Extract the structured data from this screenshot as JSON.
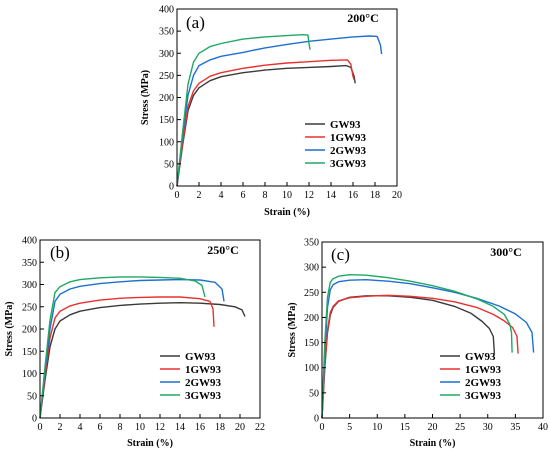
{
  "chart_data": [
    {
      "type": "line",
      "panel": "(a)",
      "temperature": "200°C",
      "xlabel": "Strain (%)",
      "ylabel": "Stress (MPa)",
      "xlim": [
        0,
        20
      ],
      "ylim": [
        0,
        400
      ],
      "xticks": [
        "0",
        "2",
        "4",
        "6",
        "8",
        "10",
        "12",
        "14",
        "16",
        "18",
        "20"
      ],
      "yticks": [
        "0",
        "50",
        "100",
        "150",
        "200",
        "250",
        "300",
        "350",
        "400"
      ],
      "legend_position": "lower-right",
      "series": [
        {
          "name": "GW93",
          "color": "#3a3a3a",
          "points": [
            [
              0,
              0
            ],
            [
              0.5,
              90
            ],
            [
              1,
              170
            ],
            [
              1.5,
              205
            ],
            [
              2,
              222
            ],
            [
              3,
              238
            ],
            [
              4,
              247
            ],
            [
              6,
              256
            ],
            [
              8,
              262
            ],
            [
              10,
              266
            ],
            [
              12,
              268
            ],
            [
              14,
              270
            ],
            [
              15.4,
              272
            ],
            [
              15.8,
              268
            ],
            [
              16.1,
              248
            ],
            [
              16.2,
              232
            ]
          ]
        },
        {
          "name": "1GW93",
          "color": "#e8312f",
          "points": [
            [
              0,
              0
            ],
            [
              0.5,
              95
            ],
            [
              1,
              180
            ],
            [
              1.5,
              215
            ],
            [
              2,
              232
            ],
            [
              3,
              248
            ],
            [
              4,
              256
            ],
            [
              6,
              266
            ],
            [
              8,
              273
            ],
            [
              10,
              278
            ],
            [
              12,
              281
            ],
            [
              14,
              284
            ],
            [
              15.5,
              285
            ],
            [
              15.8,
              275
            ],
            [
              16,
              248
            ],
            [
              16.1,
              240
            ]
          ]
        },
        {
          "name": "2GW93",
          "color": "#1f6fd1",
          "points": [
            [
              0,
              0
            ],
            [
              0.5,
              110
            ],
            [
              1,
              205
            ],
            [
              1.5,
              250
            ],
            [
              2,
              272
            ],
            [
              3,
              285
            ],
            [
              4,
              293
            ],
            [
              6,
              302
            ],
            [
              8,
              312
            ],
            [
              10,
              320
            ],
            [
              12,
              327
            ],
            [
              14,
              332
            ],
            [
              16,
              337
            ],
            [
              17.5,
              339
            ],
            [
              18.2,
              338
            ],
            [
              18.5,
              318
            ],
            [
              18.6,
              298
            ]
          ]
        },
        {
          "name": "3GW93",
          "color": "#1fa863",
          "points": [
            [
              0,
              0
            ],
            [
              0.5,
              120
            ],
            [
              1,
              230
            ],
            [
              1.5,
              280
            ],
            [
              2,
              300
            ],
            [
              3,
              315
            ],
            [
              4,
              322
            ],
            [
              6,
              332
            ],
            [
              8,
              337
            ],
            [
              10,
              340
            ],
            [
              11.5,
              342
            ],
            [
              11.9,
              341
            ],
            [
              12,
              322
            ],
            [
              12.1,
              308
            ]
          ]
        }
      ]
    },
    {
      "type": "line",
      "panel": "(b)",
      "temperature": "250°C",
      "xlabel": "Strain (%)",
      "ylabel": "Stress (MPa)",
      "xlim": [
        0,
        22
      ],
      "ylim": [
        0,
        400
      ],
      "xticks": [
        "0",
        "2",
        "4",
        "6",
        "8",
        "10",
        "12",
        "14",
        "16",
        "18",
        "20",
        "22"
      ],
      "yticks": [
        "0",
        "50",
        "100",
        "150",
        "200",
        "250",
        "300",
        "350",
        "400"
      ],
      "legend_position": "lower-right",
      "series": [
        {
          "name": "GW93",
          "color": "#3a3a3a",
          "points": [
            [
              0,
              0
            ],
            [
              0.5,
              85
            ],
            [
              1,
              160
            ],
            [
              1.5,
              200
            ],
            [
              2,
              218
            ],
            [
              3,
              232
            ],
            [
              4,
              240
            ],
            [
              6,
              248
            ],
            [
              8,
              253
            ],
            [
              10,
              256
            ],
            [
              12,
              258
            ],
            [
              14,
              259
            ],
            [
              16,
              258
            ],
            [
              18,
              255
            ],
            [
              19.5,
              250
            ],
            [
              20.2,
              243
            ],
            [
              20.5,
              228
            ]
          ]
        },
        {
          "name": "1GW93",
          "color": "#e8312f",
          "points": [
            [
              0,
              0
            ],
            [
              0.5,
              95
            ],
            [
              1,
              180
            ],
            [
              1.5,
              225
            ],
            [
              2,
              240
            ],
            [
              3,
              252
            ],
            [
              4,
              258
            ],
            [
              6,
              265
            ],
            [
              8,
              269
            ],
            [
              10,
              271
            ],
            [
              12,
              272
            ],
            [
              14,
              272
            ],
            [
              16,
              268
            ],
            [
              17,
              262
            ],
            [
              17.3,
              245
            ],
            [
              17.4,
              205
            ]
          ]
        },
        {
          "name": "2GW93",
          "color": "#1f6fd1",
          "points": [
            [
              0,
              0
            ],
            [
              0.5,
              105
            ],
            [
              1,
              200
            ],
            [
              1.5,
              262
            ],
            [
              2,
              278
            ],
            [
              3,
              290
            ],
            [
              4,
              296
            ],
            [
              6,
              302
            ],
            [
              8,
              306
            ],
            [
              10,
              309
            ],
            [
              12,
              310
            ],
            [
              14,
              311
            ],
            [
              16,
              310
            ],
            [
              17.5,
              305
            ],
            [
              18.2,
              290
            ],
            [
              18.4,
              262
            ]
          ]
        },
        {
          "name": "3GW93",
          "color": "#1fa863",
          "points": [
            [
              0,
              0
            ],
            [
              0.5,
              115
            ],
            [
              1,
              220
            ],
            [
              1.5,
              282
            ],
            [
              2,
              295
            ],
            [
              3,
              306
            ],
            [
              4,
              311
            ],
            [
              6,
              315
            ],
            [
              8,
              317
            ],
            [
              10,
              317
            ],
            [
              12,
              316
            ],
            [
              14,
              314
            ],
            [
              15.5,
              308
            ],
            [
              16.2,
              298
            ],
            [
              16.5,
              272
            ]
          ]
        }
      ]
    },
    {
      "type": "line",
      "panel": "(c)",
      "temperature": "300°C",
      "xlabel": "Strain (%)",
      "ylabel": "Stress (MPa)",
      "xlim": [
        0,
        40
      ],
      "ylim": [
        0,
        350
      ],
      "xticks": [
        "0",
        "5",
        "10",
        "15",
        "20",
        "25",
        "30",
        "35",
        "40"
      ],
      "yticks": [
        "0",
        "50",
        "100",
        "150",
        "200",
        "250",
        "300",
        "350"
      ],
      "legend_position": "lower-right",
      "series": [
        {
          "name": "GW93",
          "color": "#3a3a3a",
          "points": [
            [
              0,
              0
            ],
            [
              0.5,
              100
            ],
            [
              1,
              170
            ],
            [
              1.5,
              205
            ],
            [
              2,
              220
            ],
            [
              3,
              232
            ],
            [
              5,
              240
            ],
            [
              8,
              243
            ],
            [
              12,
              243
            ],
            [
              16,
              240
            ],
            [
              20,
              234
            ],
            [
              24,
              222
            ],
            [
              27,
              208
            ],
            [
              29,
              192
            ],
            [
              30.3,
              178
            ],
            [
              31,
              162
            ],
            [
              31.2,
              128
            ]
          ]
        },
        {
          "name": "1GW93",
          "color": "#e8312f",
          "points": [
            [
              0,
              0
            ],
            [
              0.5,
              105
            ],
            [
              1,
              175
            ],
            [
              1.5,
              210
            ],
            [
              2,
              222
            ],
            [
              3,
              233
            ],
            [
              5,
              239
            ],
            [
              8,
              242
            ],
            [
              12,
              244
            ],
            [
              16,
              242
            ],
            [
              20,
              238
            ],
            [
              24,
              231
            ],
            [
              28,
              220
            ],
            [
              31,
              206
            ],
            [
              33,
              193
            ],
            [
              34.5,
              180
            ],
            [
              35.3,
              162
            ],
            [
              35.5,
              128
            ]
          ]
        },
        {
          "name": "2GW93",
          "color": "#1f6fd1",
          "points": [
            [
              0,
              0
            ],
            [
              0.5,
              130
            ],
            [
              1,
              220
            ],
            [
              1.5,
              255
            ],
            [
              2,
              265
            ],
            [
              3,
              271
            ],
            [
              5,
              274
            ],
            [
              8,
              275
            ],
            [
              12,
              272
            ],
            [
              16,
              267
            ],
            [
              20,
              259
            ],
            [
              24,
              250
            ],
            [
              28,
              238
            ],
            [
              32,
              223
            ],
            [
              35,
              207
            ],
            [
              37,
              190
            ],
            [
              38,
              170
            ],
            [
              38.3,
              130
            ]
          ]
        },
        {
          "name": "3GW93",
          "color": "#1fa863",
          "points": [
            [
              0,
              0
            ],
            [
              0.5,
              150
            ],
            [
              1,
              240
            ],
            [
              1.5,
              270
            ],
            [
              2,
              277
            ],
            [
              3,
              282
            ],
            [
              5,
              285
            ],
            [
              8,
              284
            ],
            [
              12,
              279
            ],
            [
              16,
              272
            ],
            [
              20,
              263
            ],
            [
              24,
              252
            ],
            [
              28,
              237
            ],
            [
              31,
              222
            ],
            [
              33,
              206
            ],
            [
              34,
              186
            ],
            [
              34.3,
              170
            ],
            [
              34.4,
              130
            ]
          ]
        }
      ]
    }
  ]
}
